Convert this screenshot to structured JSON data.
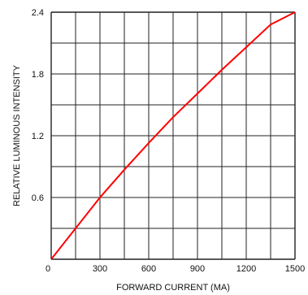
{
  "chart_data": {
    "type": "line",
    "title": "",
    "xlabel": "FORWARD CURRENT (MA)",
    "ylabel": "RELATIVE LUMINOUS INTENSITY",
    "xlim": [
      0,
      1500
    ],
    "ylim": [
      0,
      2.4
    ],
    "x_ticks": [
      0,
      300,
      600,
      900,
      1200,
      1500
    ],
    "y_ticks": [
      0,
      0.6,
      1.2,
      1.8,
      2.4
    ],
    "x_tick_labels": [
      "0",
      "300",
      "600",
      "900",
      "1200",
      "1500"
    ],
    "y_tick_labels": [
      "",
      "0.6",
      "1.2",
      "1.8",
      "2.4"
    ],
    "grid": true,
    "grid_divisions": {
      "x": 10,
      "y": 8
    },
    "series": [
      {
        "color": "#ff0000",
        "x": [
          0,
          150,
          300,
          450,
          600,
          750,
          900,
          1050,
          1200,
          1350,
          1500
        ],
        "y": [
          0,
          0.3,
          0.6,
          0.87,
          1.13,
          1.38,
          1.61,
          1.84,
          2.06,
          2.28,
          2.4
        ]
      }
    ]
  }
}
